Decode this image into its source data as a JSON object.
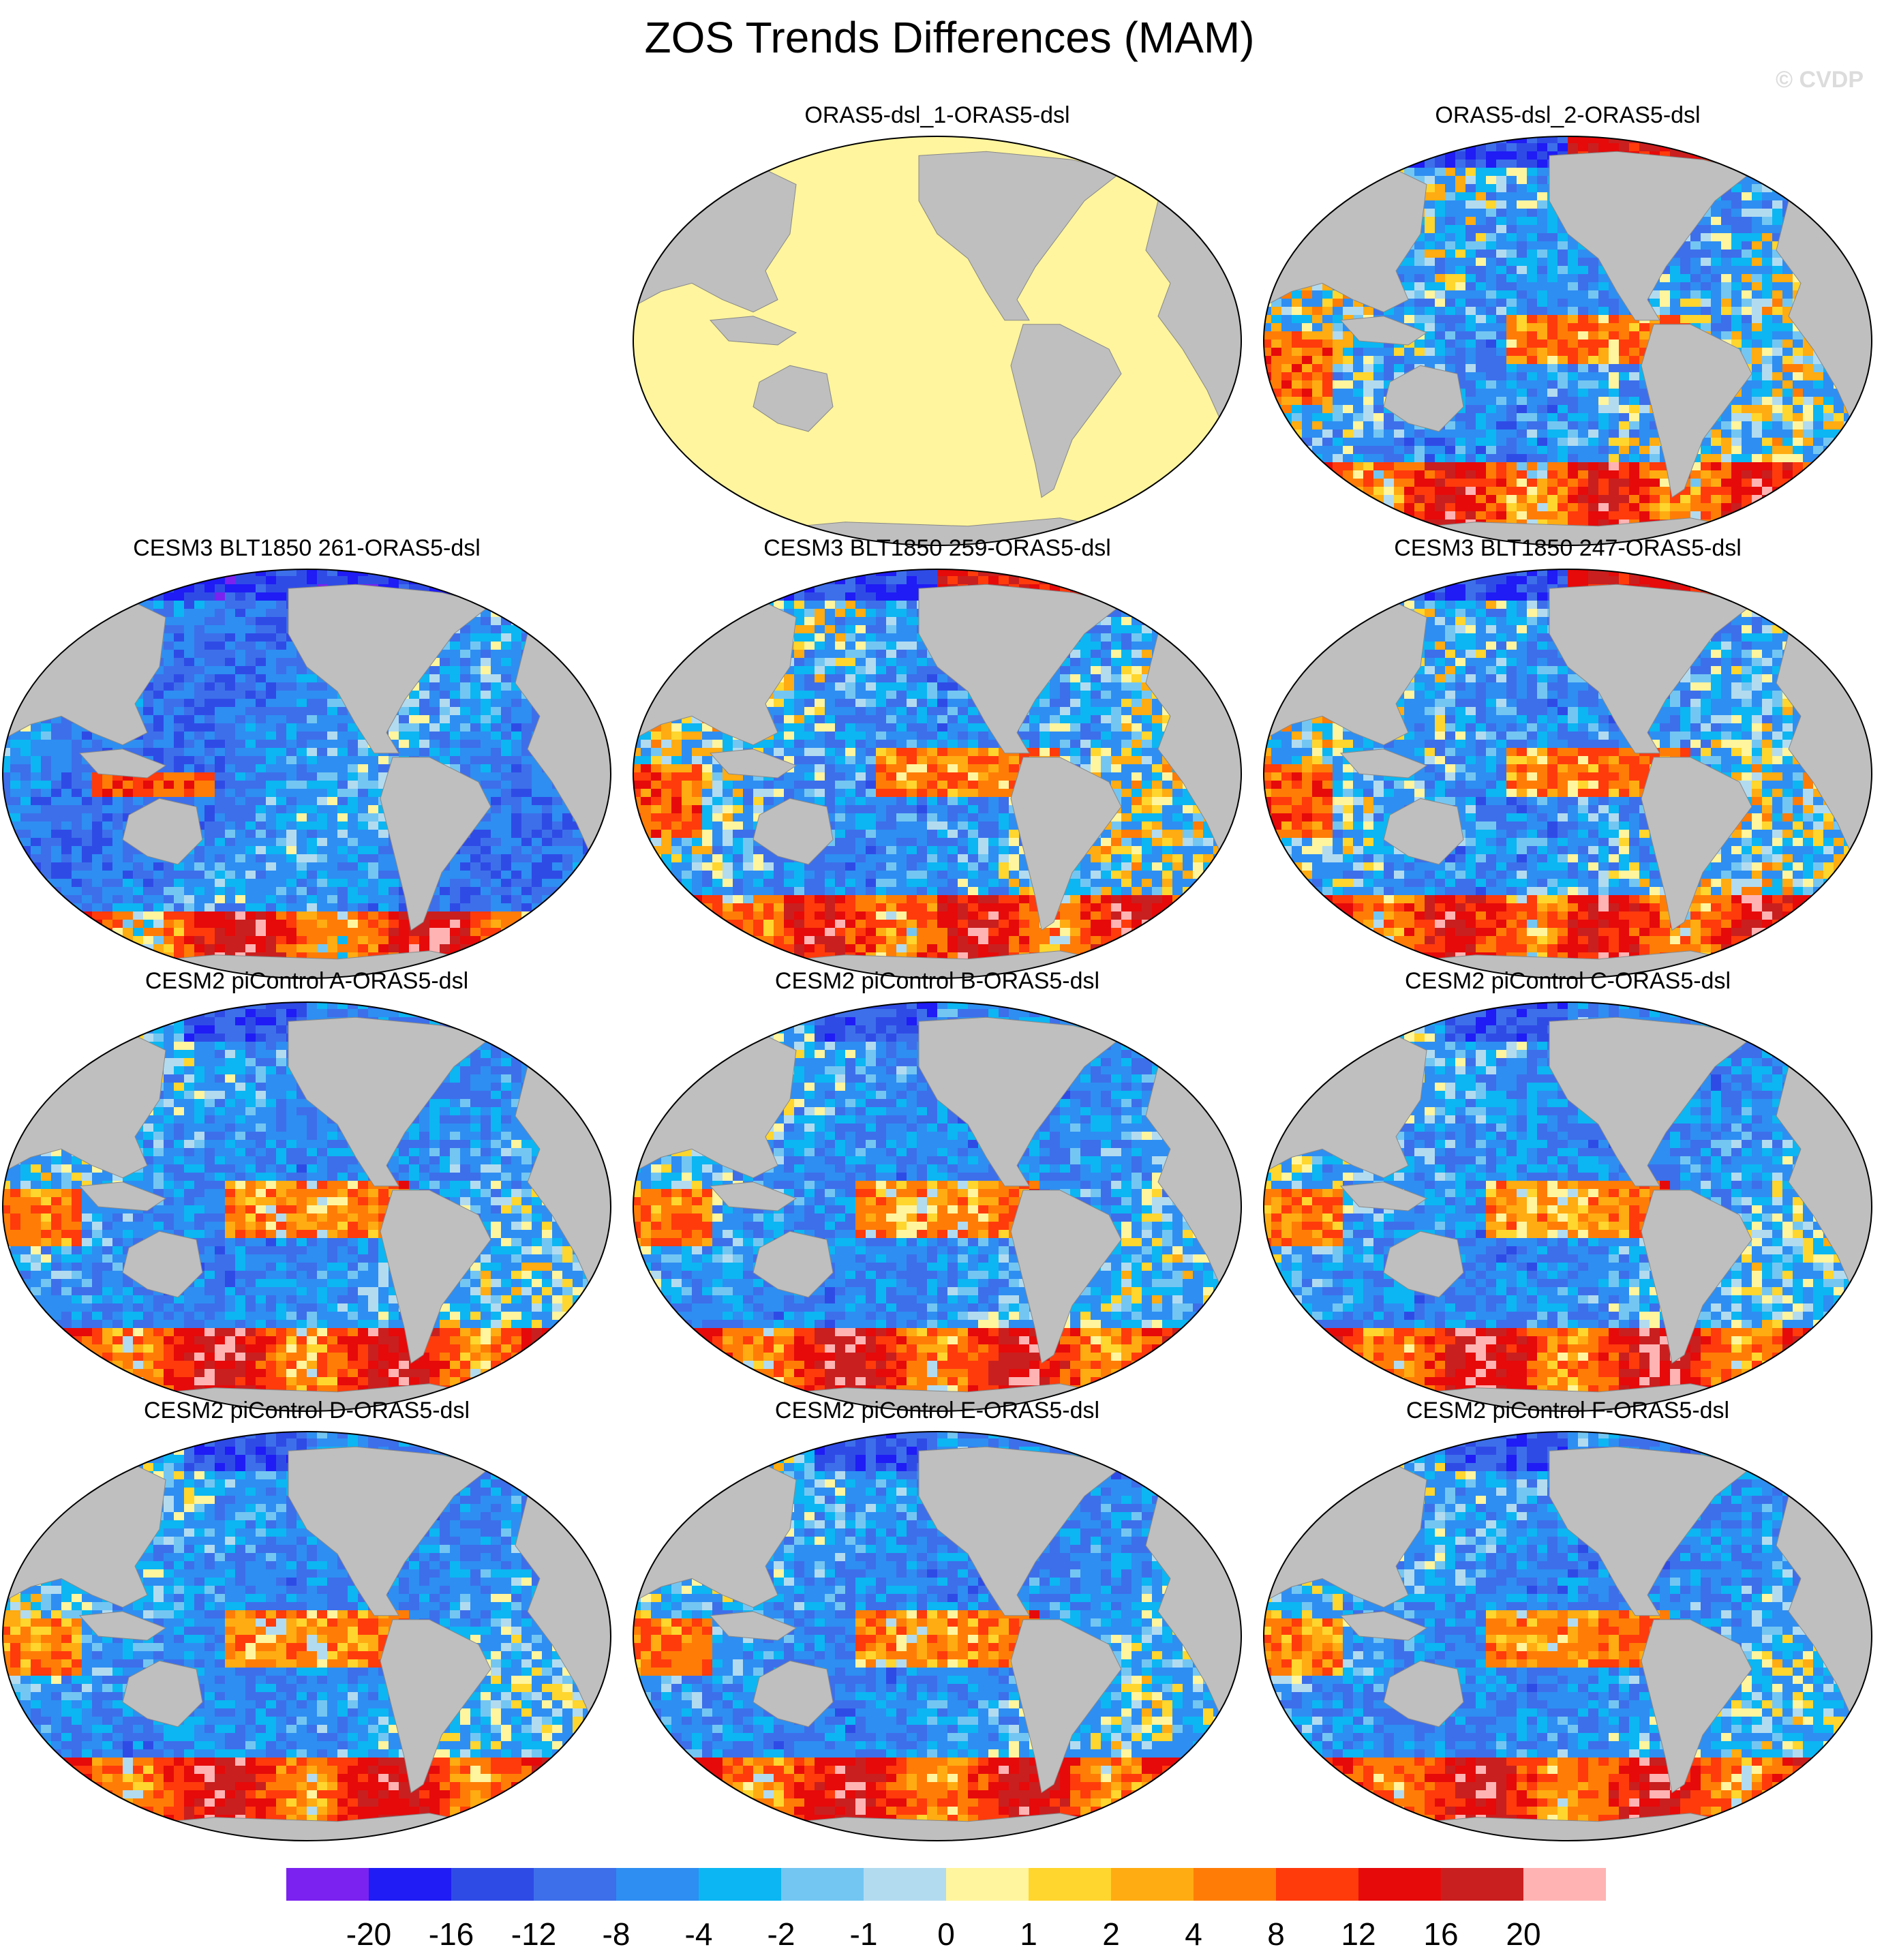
{
  "figure": {
    "title": "ZOS Trends Differences (MAM)",
    "credit": "© CVDP"
  },
  "chart_data": {
    "type": "heatmap",
    "projection": "Winkel Tripel (global map)",
    "panels": [
      {
        "title": "ORAS5-dsl_1-ORAS5-dsl",
        "pattern": "uniform",
        "dominant_value": 0.5
      },
      {
        "title": "ORAS5-dsl_2-ORAS5-dsl",
        "pattern": "mixed"
      },
      {
        "title": "CESM3 BLT1850 261-ORAS5-dsl",
        "pattern": "negative"
      },
      {
        "title": "CESM3 BLT1850 259-ORAS5-dsl",
        "pattern": "mixed"
      },
      {
        "title": "CESM3 BLT1850 247-ORAS5-dsl",
        "pattern": "mixed"
      },
      {
        "title": "CESM2 piControl A-ORAS5-dsl",
        "pattern": "positive-tropics"
      },
      {
        "title": "CESM2 piControl B-ORAS5-dsl",
        "pattern": "positive-tropics"
      },
      {
        "title": "CESM2 piControl C-ORAS5-dsl",
        "pattern": "positive-tropics"
      },
      {
        "title": "CESM2 piControl D-ORAS5-dsl",
        "pattern": "positive-tropics"
      },
      {
        "title": "CESM2 piControl E-ORAS5-dsl",
        "pattern": "positive-tropics"
      },
      {
        "title": "CESM2 piControl F-ORAS5-dsl",
        "pattern": "positive-tropics"
      }
    ],
    "colorbar": {
      "levels": [
        "-20",
        "-16",
        "-12",
        "-8",
        "-4",
        "-2",
        "-1",
        "0",
        "1",
        "2",
        "4",
        "8",
        "12",
        "16",
        "20"
      ],
      "colors": [
        "#7b22f0",
        "#1f1cf5",
        "#2f4be6",
        "#3d6fea",
        "#2e8ef2",
        "#0cb6f2",
        "#74c6f2",
        "#b2dbf0",
        "#fff59e",
        "#ffd62e",
        "#ffac12",
        "#ff7d06",
        "#ff3b0c",
        "#e60a0a",
        "#c91f1f",
        "#ffb3b3"
      ]
    },
    "land_color": "#bfbfbf",
    "missing_color": "#ffffff"
  }
}
